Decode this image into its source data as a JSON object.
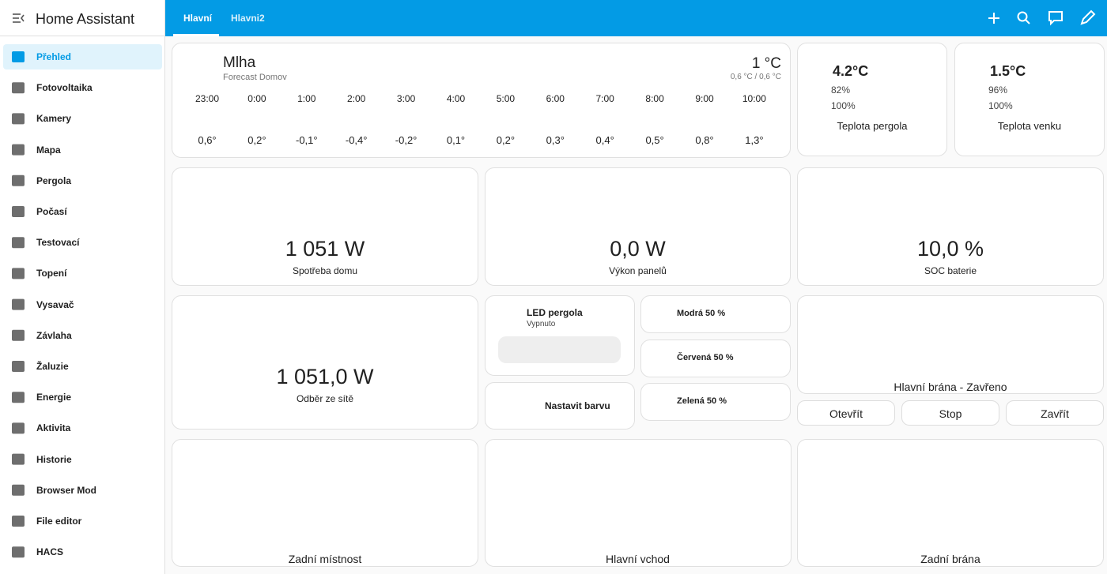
{
  "sidebar": {
    "title": "Home Assistant",
    "items": [
      "Přehled",
      "Fotovoltaika",
      "Kamery",
      "Mapa",
      "Pergola",
      "Počasí",
      "Testovací",
      "Topení",
      "Vysavač",
      "Závlaha",
      "Žaluzie",
      "Energie",
      "Aktivita",
      "Historie",
      "Browser Mod",
      "File editor",
      "HACS"
    ]
  },
  "tabs": [
    "Hlavní",
    "Hlavni2"
  ],
  "weather": {
    "condition": "Mlha",
    "subtitle": "Forecast Domov",
    "temp": "1 °C",
    "range": "0,6 °C / 0,6 °C",
    "forecast": [
      {
        "time": "23:00",
        "temp": "0,6°"
      },
      {
        "time": "0:00",
        "temp": "0,2°"
      },
      {
        "time": "1:00",
        "temp": "-0,1°"
      },
      {
        "time": "2:00",
        "temp": "-0,4°"
      },
      {
        "time": "3:00",
        "temp": "-0,2°"
      },
      {
        "time": "4:00",
        "temp": "0,1°"
      },
      {
        "time": "5:00",
        "temp": "0,2°"
      },
      {
        "time": "6:00",
        "temp": "0,3°"
      },
      {
        "time": "7:00",
        "temp": "0,4°"
      },
      {
        "time": "8:00",
        "temp": "0,5°"
      },
      {
        "time": "9:00",
        "temp": "0,8°"
      },
      {
        "time": "10:00",
        "temp": "1,3°"
      }
    ]
  },
  "sensors": [
    {
      "temp": "4.2°C",
      "humidity": "82%",
      "battery": "100%",
      "name": "Teplota pergola"
    },
    {
      "temp": "1.5°C",
      "humidity": "96%",
      "battery": "100%",
      "name": "Teplota venku"
    }
  ],
  "gauges": [
    {
      "value": "1 051 W",
      "name": "Spotřeba domu"
    },
    {
      "value": "0,0 W",
      "name": "Výkon panelů"
    },
    {
      "value": "10,0 %",
      "name": "SOC baterie"
    },
    {
      "value": "1 051,0 W",
      "name": "Odběr ze sítě"
    }
  ],
  "light": {
    "name": "LED pergola",
    "state": "Vypnuto"
  },
  "set_color": "Nastavit barvu",
  "presets": [
    "Modrá 50 %",
    "Červená 50 %",
    "Zelená 50 %"
  ],
  "gate": {
    "name": "Hlavní brána - Zavřeno",
    "buttons": [
      "Otevřít",
      "Stop",
      "Zavřít"
    ]
  },
  "locks": [
    "Zadní místnost",
    "Hlavní vchod",
    "Zadní brána"
  ]
}
